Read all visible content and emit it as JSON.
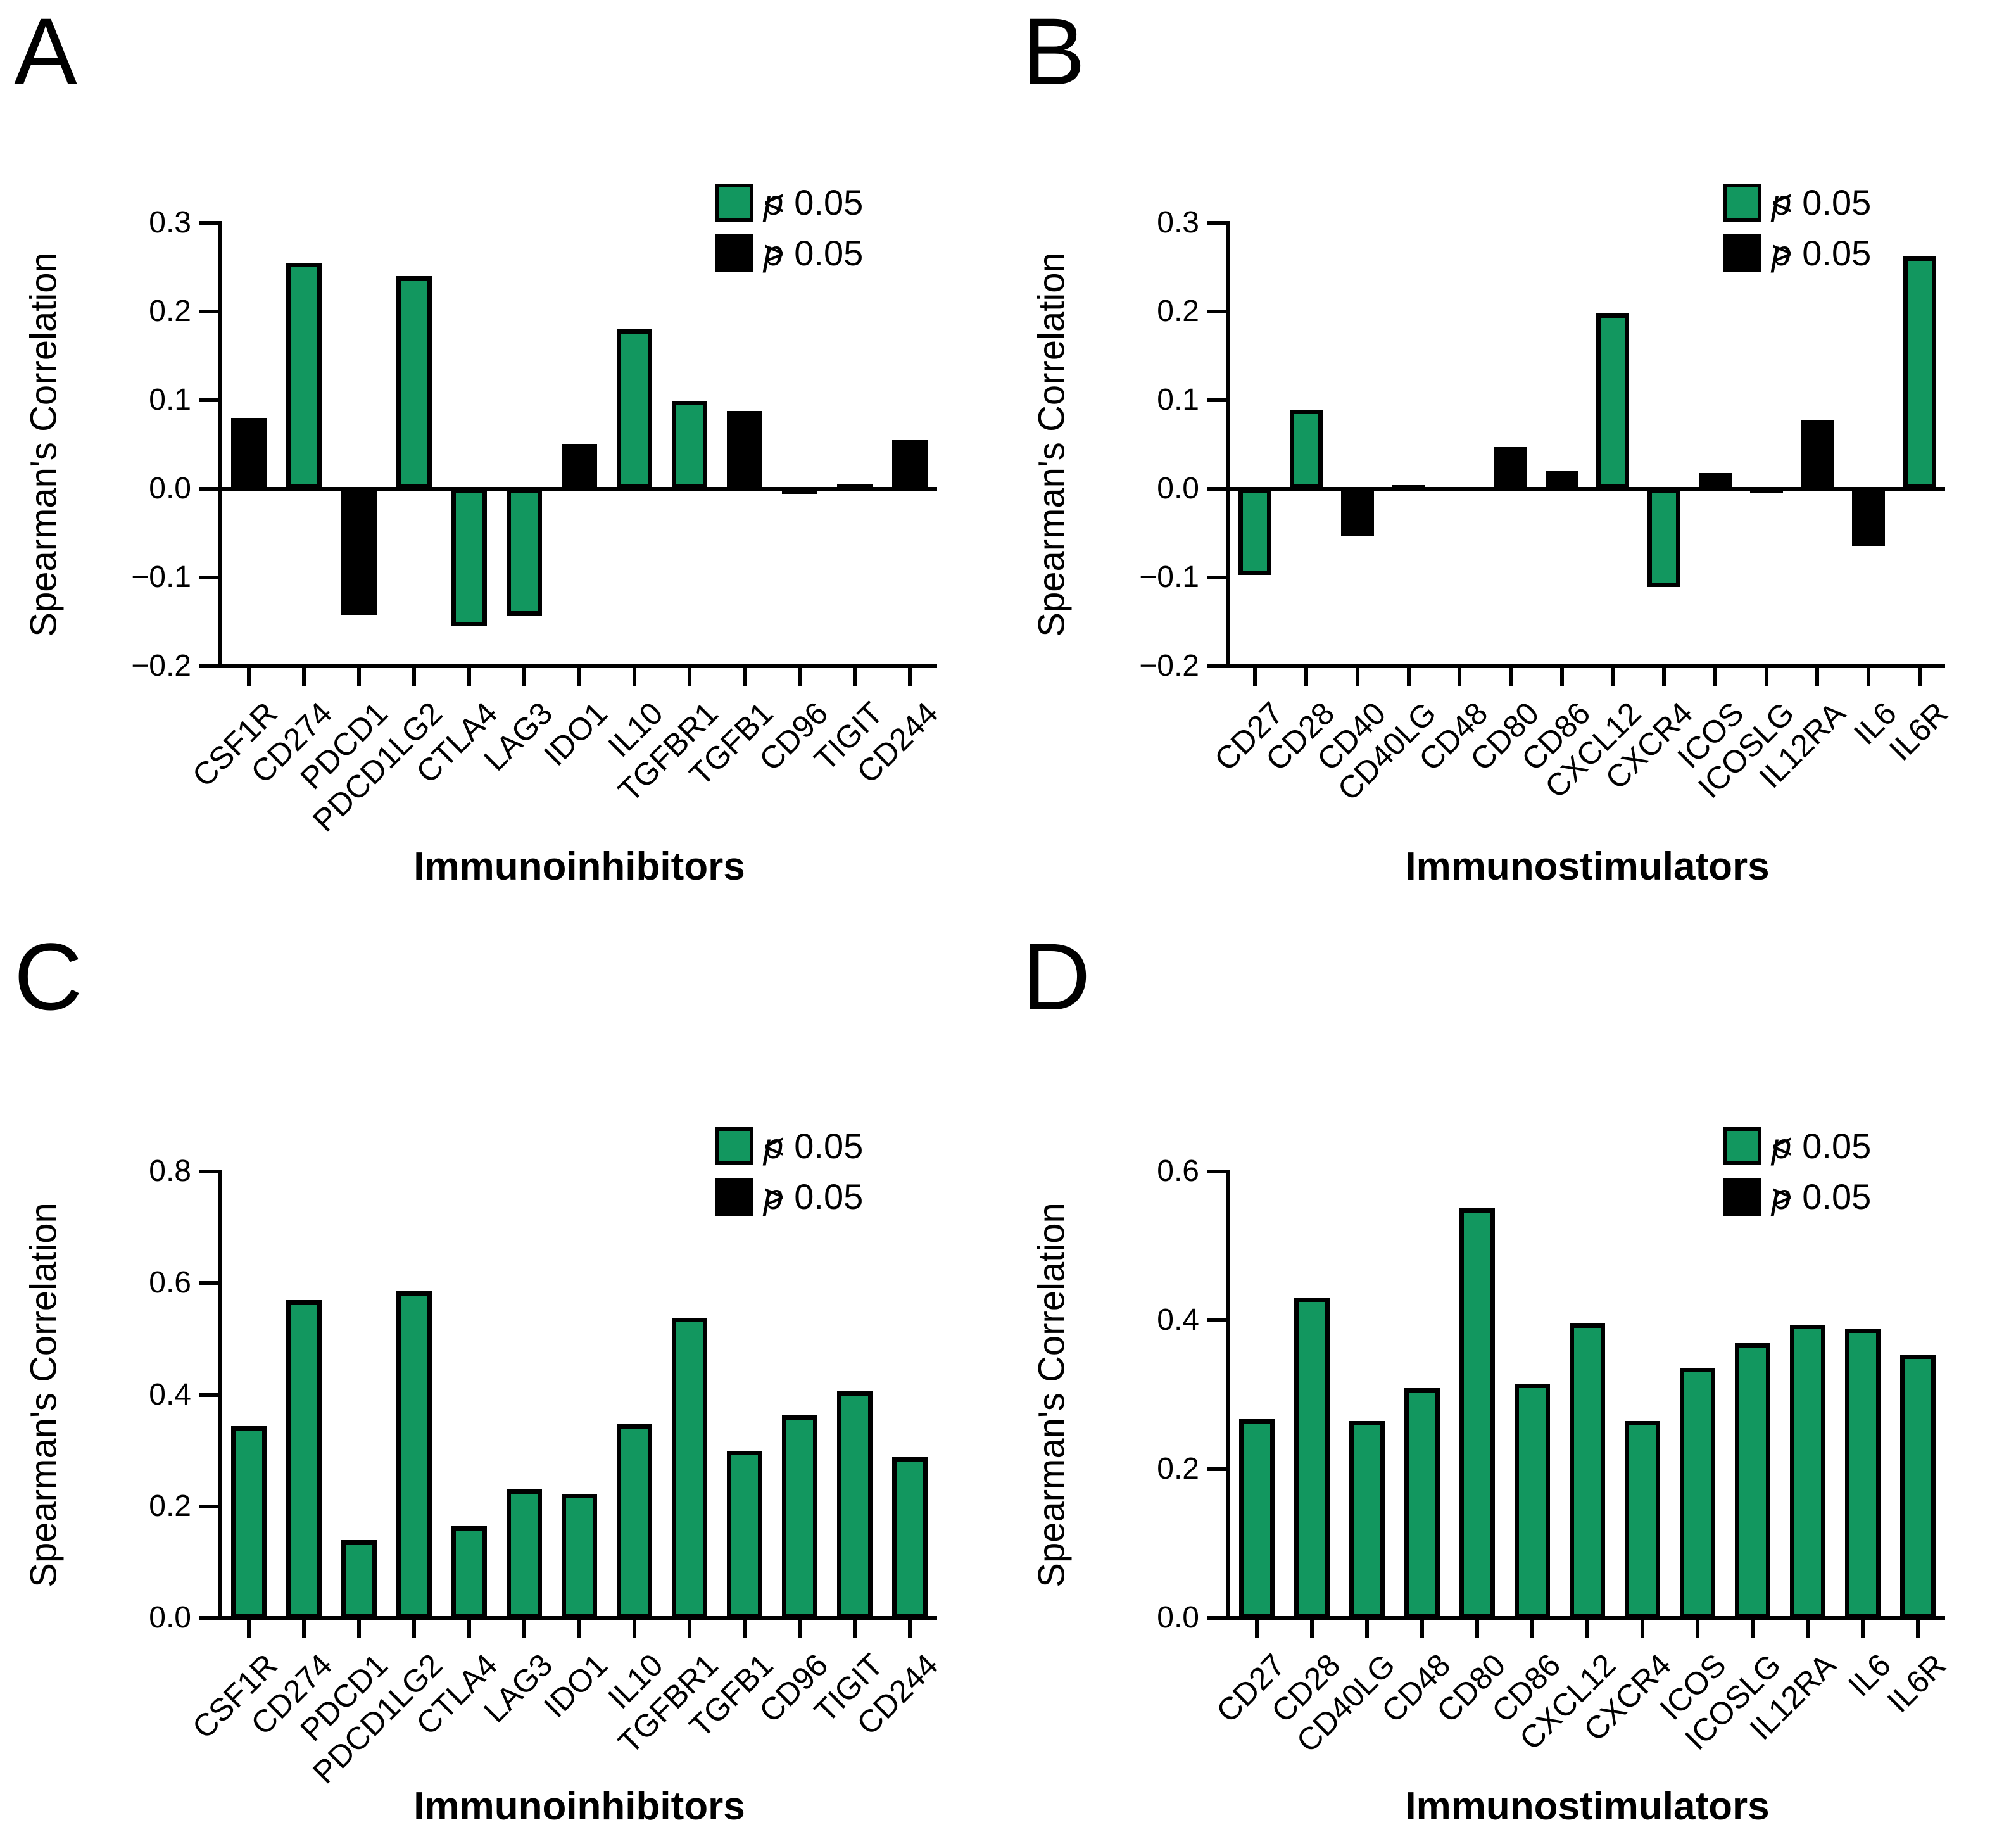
{
  "figure": {
    "background_color": "#ffffff",
    "axis_color": "#000000",
    "bar_colors": {
      "significant": "#12975F",
      "nonsignificant": "#000000"
    },
    "legend_items": [
      {
        "key": "significant",
        "label": "p < 0.05"
      },
      {
        "key": "nonsignificant",
        "label": "p > 0.05"
      }
    ]
  },
  "chart_data": [
    {
      "panel_label": "A",
      "type": "bar",
      "title": "",
      "xlabel": "Immunoinhibitors",
      "ylabel": "Spearman's Correlation",
      "ylim": [
        -0.2,
        0.3
      ],
      "yticks": [
        "0.3",
        "0.2",
        "0.1",
        "0.0",
        "-0.1",
        "-0.2"
      ],
      "grid": false,
      "legend_position": "top-right",
      "categories": [
        "CSF1R",
        "CD274",
        "PDCD1",
        "PDCD1LG2",
        "CTLA4",
        "LAG3",
        "IDO1",
        "IL10",
        "TGFBR1",
        "TGFB1",
        "CD96",
        "TIGIT",
        "CD244"
      ],
      "values": [
        0.08,
        0.255,
        -0.142,
        0.24,
        -0.155,
        -0.143,
        0.051,
        0.18,
        0.099,
        0.088,
        -0.006,
        0.005,
        0.055
      ],
      "significant": [
        false,
        true,
        false,
        true,
        true,
        true,
        false,
        true,
        true,
        false,
        false,
        false,
        false
      ]
    },
    {
      "panel_label": "B",
      "type": "bar",
      "title": "",
      "xlabel": "Immunostimulators",
      "ylabel": "Spearman's Correlation",
      "ylim": [
        -0.2,
        0.3
      ],
      "yticks": [
        "0.3",
        "0.2",
        "0.1",
        "0.0",
        "-0.1",
        "-0.2"
      ],
      "grid": false,
      "legend_position": "top-right",
      "categories": [
        "CD27",
        "CD28",
        "CD40",
        "CD40LG",
        "CD48",
        "CD80",
        "CD86",
        "CXCL12",
        "CXCR4",
        "ICOS",
        "ICOSLG",
        "IL12RA",
        "IL6",
        "IL6R"
      ],
      "values": [
        -0.097,
        0.089,
        -0.053,
        0.004,
        0.0,
        0.047,
        0.02,
        0.198,
        -0.111,
        0.018,
        -0.005,
        0.077,
        -0.064,
        0.262
      ],
      "significant": [
        true,
        true,
        false,
        false,
        false,
        false,
        false,
        true,
        true,
        false,
        false,
        false,
        false,
        true
      ]
    },
    {
      "panel_label": "C",
      "type": "bar",
      "title": "",
      "xlabel": "Immunoinhibitors",
      "ylabel": "Spearman's Correlation",
      "ylim": [
        0,
        0.8
      ],
      "yticks": [
        "0.8",
        "0.6",
        "0.4",
        "0.2",
        "0.0"
      ],
      "grid": false,
      "legend_position": "top-right",
      "categories": [
        "CSF1R",
        "CD274",
        "PDCD1",
        "PDCD1LG2",
        "CTLA4",
        "LAG3",
        "IDO1",
        "IL10",
        "TGFBR1",
        "TGFB1",
        "CD96",
        "TIGIT",
        "CD244"
      ],
      "values": [
        0.344,
        0.57,
        0.14,
        0.585,
        0.165,
        0.23,
        0.222,
        0.347,
        0.538,
        0.3,
        0.363,
        0.406,
        0.288
      ],
      "significant": [
        true,
        true,
        true,
        true,
        true,
        true,
        true,
        true,
        true,
        true,
        true,
        true,
        true
      ]
    },
    {
      "panel_label": "D",
      "type": "bar",
      "title": "",
      "xlabel": "Immunostimulators",
      "ylabel": "Spearman's Correlation",
      "ylim": [
        0,
        0.6
      ],
      "yticks": [
        "0.6",
        "0.4",
        "0.2",
        "0.0"
      ],
      "grid": false,
      "legend_position": "top-right",
      "categories": [
        "CD27",
        "CD28",
        "CD40LG",
        "CD48",
        "CD80",
        "CD86",
        "CXCL12",
        "CXCR4",
        "ICOS",
        "ICOSLG",
        "IL12RA",
        "IL6",
        "IL6R"
      ],
      "values": [
        0.267,
        0.431,
        0.265,
        0.309,
        0.551,
        0.315,
        0.396,
        0.265,
        0.336,
        0.369,
        0.394,
        0.389,
        0.354
      ],
      "significant": [
        true,
        true,
        true,
        true,
        true,
        true,
        true,
        true,
        true,
        true,
        true,
        true,
        true
      ]
    }
  ]
}
